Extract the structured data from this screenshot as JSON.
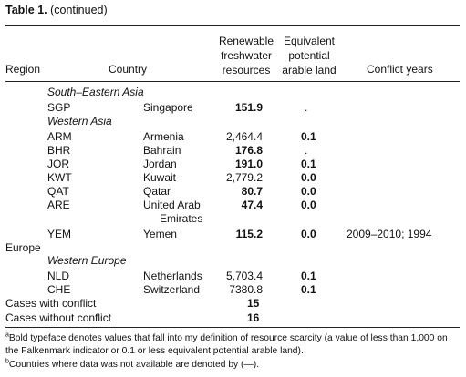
{
  "title": {
    "label": "Table 1.",
    "suffix": " (continued)"
  },
  "headers": {
    "region": "Region",
    "country": "Country",
    "renewable": [
      "Renewable",
      "freshwater",
      "resources"
    ],
    "equivalent": [
      "Equivalent",
      "potential",
      "arable land"
    ],
    "conflict": "Conflict years"
  },
  "subregions": {
    "se_asia": "South–Eastern Asia",
    "w_asia": "Western Asia",
    "europe_region": "Europe",
    "w_europe": "Western Europe"
  },
  "rows": [
    {
      "code": "SGP",
      "country": "Singapore",
      "water": "151.9",
      "water_bold": true,
      "land": ".",
      "land_bold": false,
      "conflict": ""
    },
    {
      "code": "ARM",
      "country": "Armenia",
      "water": "2,464.4",
      "water_bold": false,
      "land": "0.1",
      "land_bold": true,
      "conflict": ""
    },
    {
      "code": "BHR",
      "country": "Bahrain",
      "water": "176.8",
      "water_bold": true,
      "land": ".",
      "land_bold": false,
      "conflict": ""
    },
    {
      "code": "JOR",
      "country": "Jordan",
      "water": "191.0",
      "water_bold": true,
      "land": "0.1",
      "land_bold": true,
      "conflict": ""
    },
    {
      "code": "KWT",
      "country": "Kuwait",
      "water": "2,779.2",
      "water_bold": false,
      "land": "0.0",
      "land_bold": true,
      "conflict": ""
    },
    {
      "code": "QAT",
      "country": "Qatar",
      "water": "80.7",
      "water_bold": true,
      "land": "0.0",
      "land_bold": true,
      "conflict": ""
    },
    {
      "code": "ARE",
      "country": "United Arab",
      "country2": "Emirates",
      "water": "47.4",
      "water_bold": true,
      "land": "0.0",
      "land_bold": true,
      "conflict": ""
    },
    {
      "code": "YEM",
      "country": "Yemen",
      "water": "115.2",
      "water_bold": true,
      "land": "0.0",
      "land_bold": true,
      "conflict": "2009–2010; 1994"
    },
    {
      "code": "NLD",
      "country": "Netherlands",
      "water": "5,703.4",
      "water_bold": false,
      "land": "0.1",
      "land_bold": true,
      "conflict": ""
    },
    {
      "code": "CHE",
      "country": "Switzerland",
      "water": "7380.8",
      "water_bold": false,
      "land": "0.1",
      "land_bold": true,
      "conflict": ""
    }
  ],
  "summary": {
    "with_label": "Cases with conflict",
    "with_value": "15",
    "without_label": "Cases without conflict",
    "without_value": "16"
  },
  "footnotes": {
    "a_mark": "a",
    "a_line1": "Bold typeface denotes values that fall into my definition of resource scarcity (a value of less than 1,000 on",
    "a_line2": "the Falkenmark indicator or 0.1 or less equivalent potential arable land).",
    "b_mark": "b",
    "b_line1": "Countries where data was not available are denoted by (—)."
  }
}
